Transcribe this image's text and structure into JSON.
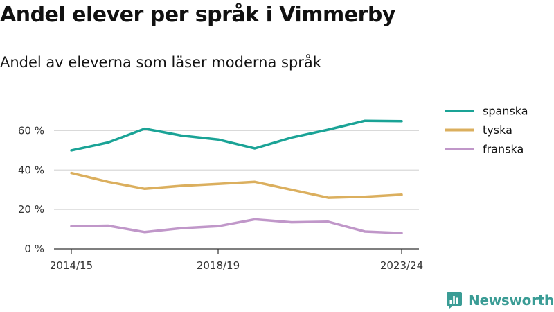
{
  "title": "Andel elever per språk i Vimmerby",
  "subtitle": "Andel av eleverna som läser moderna språk",
  "brand": {
    "name": "Newsworthy",
    "logo_icon": "bar-chart-logo-icon",
    "color": "#3a9c95"
  },
  "chart_data": {
    "type": "line",
    "title": "Andel elever per språk i Vimmerby",
    "subtitle": "Andel av eleverna som läser moderna språk",
    "xlabel": "",
    "ylabel": "",
    "ylim": [
      0,
      70
    ],
    "yticks": [
      0,
      20,
      40,
      60
    ],
    "ytick_labels": [
      "0 %",
      "20 %",
      "40 %",
      "60 %"
    ],
    "x": [
      "2014/15",
      "2015/16",
      "2016/17",
      "2017/18",
      "2018/19",
      "2019/20",
      "2020/21",
      "2021/22",
      "2022/23",
      "2023/24"
    ],
    "xtick_labels": [
      "2014/15",
      "2018/19",
      "2023/24"
    ],
    "grid": true,
    "legend_position": "top-right",
    "series": [
      {
        "name": "spanska",
        "color": "#1aa396",
        "values": [
          50,
          54,
          61,
          57.5,
          55.5,
          51,
          56.5,
          60.5,
          65,
          64.8
        ]
      },
      {
        "name": "tyska",
        "color": "#dbaf5e",
        "values": [
          38.5,
          34,
          30.5,
          32,
          33,
          34,
          30,
          26,
          26.5,
          27.5
        ]
      },
      {
        "name": "franska",
        "color": "#c097c9",
        "values": [
          11.5,
          11.8,
          8.5,
          10.5,
          11.5,
          15,
          13.5,
          13.8,
          8.8,
          8
        ]
      }
    ]
  }
}
